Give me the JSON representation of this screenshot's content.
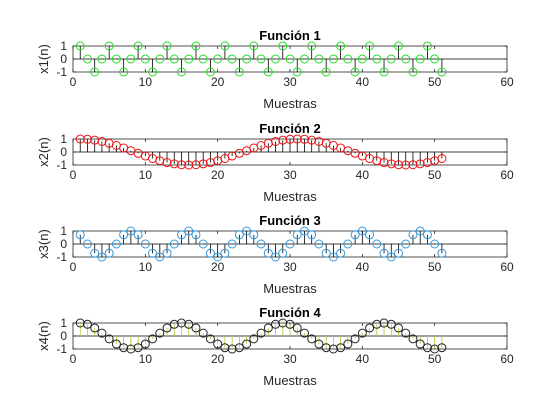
{
  "chart_data": [
    {
      "type": "stem",
      "title": "Función 1",
      "xlabel": "Muestras",
      "ylabel": "x1(n)",
      "xlim": [
        0,
        60
      ],
      "ylim": [
        -1,
        1
      ],
      "xticks": [
        0,
        10,
        20,
        30,
        40,
        50,
        60
      ],
      "yticks": [
        -1,
        0,
        1
      ],
      "marker_color": "#22dd22",
      "stem_color": "#000000",
      "x": [
        1,
        2,
        3,
        4,
        5,
        6,
        7,
        8,
        9,
        10,
        11,
        12,
        13,
        14,
        15,
        16,
        17,
        18,
        19,
        20,
        21,
        22,
        23,
        24,
        25,
        26,
        27,
        28,
        29,
        30,
        31,
        32,
        33,
        34,
        35,
        36,
        37,
        38,
        39,
        40,
        41,
        42,
        43,
        44,
        45,
        46,
        47,
        48,
        49,
        50,
        51
      ],
      "values": [
        1,
        0,
        -1,
        0,
        1,
        0,
        -1,
        0,
        1,
        0,
        -1,
        0,
        1,
        0,
        -1,
        0,
        1,
        0,
        -1,
        0,
        1,
        0,
        -1,
        0,
        1,
        0,
        -1,
        0,
        1,
        0,
        -1,
        0,
        1,
        0,
        -1,
        0,
        1,
        0,
        -1,
        0,
        1,
        0,
        -1,
        0,
        1,
        0,
        -1,
        0,
        1,
        0,
        -1
      ]
    },
    {
      "type": "stem",
      "title": "Función 2",
      "xlabel": "Muestras",
      "ylabel": "x2(n)",
      "xlim": [
        0,
        60
      ],
      "ylim": [
        -1,
        1
      ],
      "xticks": [
        0,
        10,
        20,
        30,
        40,
        50,
        60
      ],
      "yticks": [
        -1,
        0,
        1
      ],
      "marker_color": "#ee1111",
      "stem_color": "#000000",
      "x": [
        1,
        2,
        3,
        4,
        5,
        6,
        7,
        8,
        9,
        10,
        11,
        12,
        13,
        14,
        15,
        16,
        17,
        18,
        19,
        20,
        21,
        22,
        23,
        24,
        25,
        26,
        27,
        28,
        29,
        30,
        31,
        32,
        33,
        34,
        35,
        36,
        37,
        38,
        39,
        40,
        41,
        42,
        43,
        44,
        45,
        46,
        47,
        48,
        49,
        50,
        51
      ],
      "values": [
        1,
        0.98,
        0.91,
        0.81,
        0.67,
        0.5,
        0.31,
        0.1,
        -0.1,
        -0.31,
        -0.5,
        -0.67,
        -0.81,
        -0.91,
        -0.98,
        -1,
        -0.98,
        -0.91,
        -0.81,
        -0.67,
        -0.5,
        -0.31,
        -0.1,
        0.1,
        0.31,
        0.5,
        0.67,
        0.81,
        0.91,
        0.98,
        1,
        0.98,
        0.91,
        0.81,
        0.67,
        0.5,
        0.31,
        0.1,
        -0.1,
        -0.31,
        -0.5,
        -0.67,
        -0.81,
        -0.91,
        -0.98,
        -1,
        -0.98,
        -0.91,
        -0.81,
        -0.67,
        -0.5
      ]
    },
    {
      "type": "stem",
      "title": "Función 3",
      "xlabel": "Muestras",
      "ylabel": "x3(n)",
      "xlim": [
        0,
        60
      ],
      "ylim": [
        -1,
        1
      ],
      "xticks": [
        0,
        10,
        20,
        30,
        40,
        50,
        60
      ],
      "yticks": [
        -1,
        0,
        1
      ],
      "marker_color": "#3399dd",
      "stem_color": "#000000",
      "x": [
        1,
        2,
        3,
        4,
        5,
        6,
        7,
        8,
        9,
        10,
        11,
        12,
        13,
        14,
        15,
        16,
        17,
        18,
        19,
        20,
        21,
        22,
        23,
        24,
        25,
        26,
        27,
        28,
        29,
        30,
        31,
        32,
        33,
        34,
        35,
        36,
        37,
        38,
        39,
        40,
        41,
        42,
        43,
        44,
        45,
        46,
        47,
        48,
        49,
        50,
        51
      ],
      "values": [
        0.71,
        0,
        -0.71,
        -1,
        -0.71,
        0,
        0.71,
        1,
        0.71,
        0,
        -0.71,
        -1,
        -0.71,
        0,
        0.71,
        1,
        0.71,
        0,
        -0.71,
        -1,
        -0.71,
        0,
        0.71,
        1,
        0.71,
        0,
        -0.71,
        -1,
        -0.71,
        0,
        0.71,
        1,
        0.71,
        0,
        -0.71,
        -1,
        -0.71,
        0,
        0.71,
        1,
        0.71,
        0,
        -0.71,
        -1,
        -0.71,
        0,
        0.71,
        1,
        0.71,
        0,
        -0.71
      ]
    },
    {
      "type": "stem",
      "title": "Función 4",
      "xlabel": "Muestras",
      "ylabel": "x4(n)",
      "xlim": [
        0,
        60
      ],
      "ylim": [
        -1,
        1
      ],
      "xticks": [
        0,
        10,
        20,
        30,
        40,
        50,
        60
      ],
      "yticks": [
        -1,
        0,
        1
      ],
      "marker_color": "#222222",
      "stem_color": "#aacc33",
      "x": [
        1,
        2,
        3,
        4,
        5,
        6,
        7,
        8,
        9,
        10,
        11,
        12,
        13,
        14,
        15,
        16,
        17,
        18,
        19,
        20,
        21,
        22,
        23,
        24,
        25,
        26,
        27,
        28,
        29,
        30,
        31,
        32,
        33,
        34,
        35,
        36,
        37,
        38,
        39,
        40,
        41,
        42,
        43,
        44,
        45,
        46,
        47,
        48,
        49,
        50,
        51
      ],
      "values": [
        1,
        0.9,
        0.62,
        0.22,
        -0.22,
        -0.62,
        -0.9,
        -1,
        -0.9,
        -0.62,
        -0.22,
        0.22,
        0.62,
        0.9,
        1,
        0.9,
        0.62,
        0.22,
        -0.22,
        -0.62,
        -0.9,
        -1,
        -0.9,
        -0.62,
        -0.22,
        0.22,
        0.62,
        0.9,
        1,
        0.9,
        0.62,
        0.22,
        -0.22,
        -0.62,
        -0.9,
        -1,
        -0.9,
        -0.62,
        -0.22,
        0.22,
        0.62,
        0.9,
        1,
        0.9,
        0.62,
        0.22,
        -0.22,
        -0.62,
        -0.9,
        -1,
        -0.9
      ]
    }
  ]
}
